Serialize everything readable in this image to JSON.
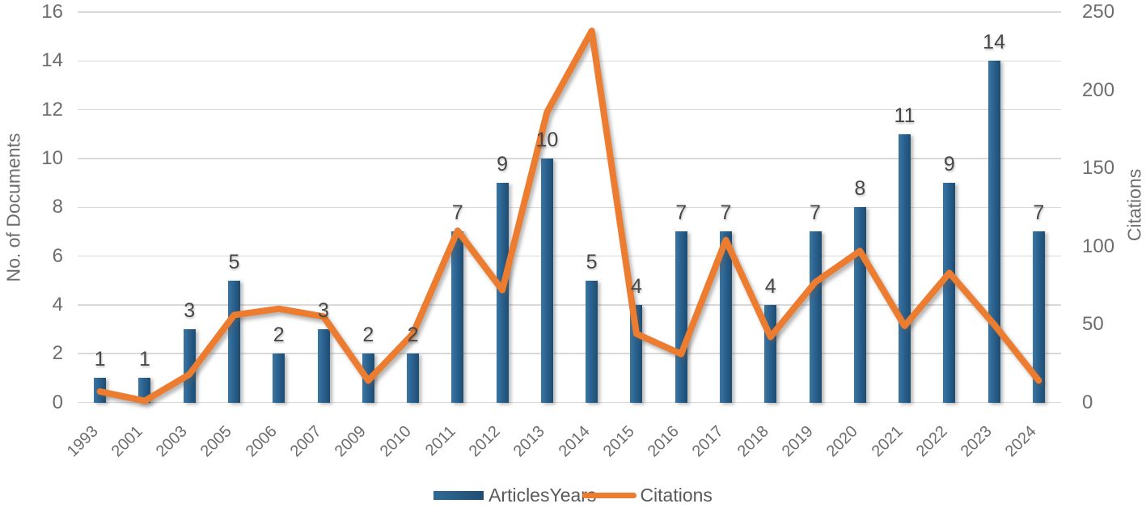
{
  "chart_data": {
    "type": "bar+line combo",
    "categories": [
      "1993",
      "2001",
      "2003",
      "2005",
      "2006",
      "2007",
      "2009",
      "2010",
      "2011",
      "2012",
      "2013",
      "2014",
      "2015",
      "2016",
      "2017",
      "2018",
      "2019",
      "2020",
      "2021",
      "2022",
      "2023",
      "2024"
    ],
    "series": [
      {
        "name": "ArticlesYears",
        "type": "bar",
        "axis": "left",
        "color": "#2a6290",
        "values": [
          1,
          1,
          3,
          5,
          2,
          3,
          2,
          2,
          7,
          9,
          10,
          5,
          4,
          7,
          7,
          4,
          7,
          8,
          11,
          9,
          14,
          7
        ],
        "data_labels_shown": true
      },
      {
        "name": "Citations",
        "type": "line",
        "axis": "right",
        "color": "#EC7C30",
        "values": [
          7,
          1,
          18,
          56,
          60,
          55,
          14,
          44,
          110,
          72,
          186,
          238,
          44,
          31,
          104,
          42,
          77,
          97,
          49,
          83,
          50,
          14
        ],
        "data_labels_shown": false
      }
    ],
    "left_axis": {
      "title": "No. of Documents",
      "min": 0,
      "max": 16,
      "step": 2,
      "ticks": [
        0,
        2,
        4,
        6,
        8,
        10,
        12,
        14,
        16
      ]
    },
    "right_axis": {
      "title": "Citations",
      "min": 0,
      "max": 250,
      "step": 50,
      "ticks": [
        0,
        50,
        100,
        150,
        200,
        250
      ]
    },
    "grid": true,
    "legend_position": "bottom",
    "colors": {
      "bar_fill": "#2a6290",
      "bar_fill_light": "#3c76a0",
      "bar_fill_dark": "#1e4c70",
      "line": "#EC7C30",
      "gridline": "#d9d9d9",
      "tick_text": "#6d6d6d",
      "data_label_text": "#474747",
      "legend_text": "#5a5a5a"
    }
  }
}
